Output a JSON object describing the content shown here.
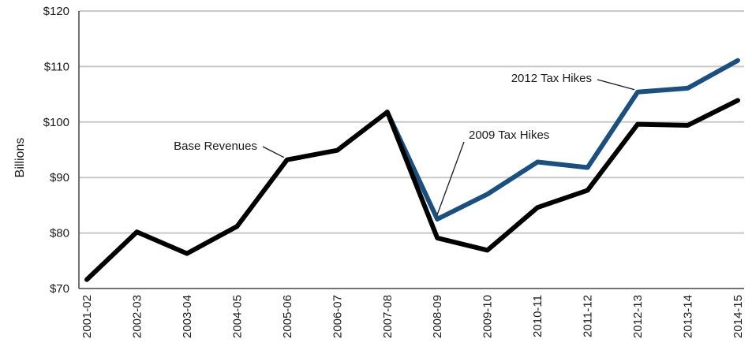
{
  "chart_data": {
    "type": "line",
    "title": "",
    "xlabel": "",
    "ylabel": "Billions",
    "ylim": [
      70,
      120
    ],
    "y_ticks": [
      70,
      80,
      90,
      100,
      110,
      120
    ],
    "y_tick_labels": [
      "$70",
      "$80",
      "$90",
      "$100",
      "$110",
      "$120"
    ],
    "grid": "horizontal",
    "categories": [
      "2001-02",
      "2002-03",
      "2003-04",
      "2004-05",
      "2005-06",
      "2006-07",
      "2007-08",
      "2008-09",
      "2009-10",
      "2010-11",
      "2011-12",
      "2012-13",
      "2013-14",
      "2014-15"
    ],
    "series": [
      {
        "name": "Base Revenues",
        "color": "#000000",
        "values": [
          71.6,
          80.2,
          76.3,
          81.2,
          93.2,
          94.9,
          101.8,
          79.1,
          76.9,
          84.6,
          87.7,
          99.6,
          99.4,
          103.9
        ]
      },
      {
        "name": "2012 Tax Hikes",
        "color": "#1b4f7e",
        "values": [
          null,
          null,
          null,
          null,
          null,
          null,
          101.8,
          82.5,
          87.0,
          92.8,
          91.8,
          105.4,
          106.1,
          111.1
        ]
      }
    ],
    "annotations": [
      {
        "text": "Base Revenues",
        "target_series": 0,
        "target_category": "2005-06"
      },
      {
        "text": "2009 Tax Hikes",
        "target_series": 1,
        "target_category": "2008-09"
      },
      {
        "text": "2012 Tax Hikes",
        "target_series": 1,
        "target_category": "2012-13"
      }
    ]
  }
}
